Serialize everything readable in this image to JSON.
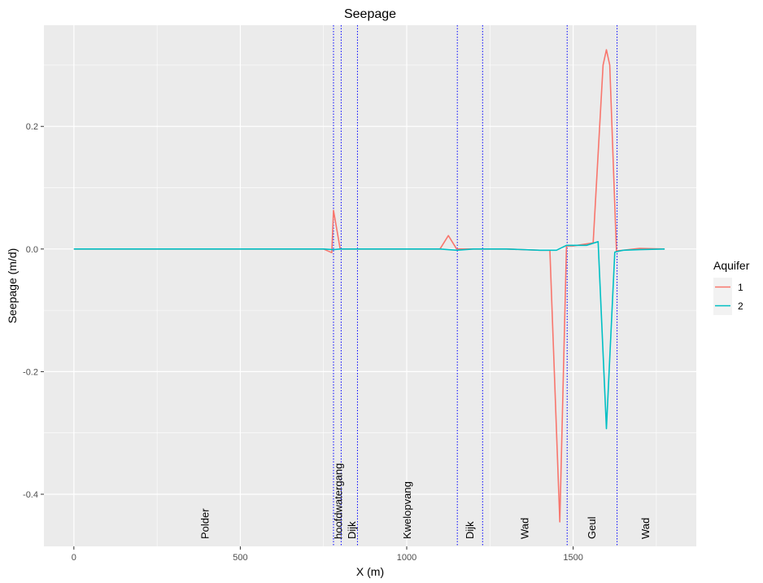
{
  "chart_data": {
    "type": "line",
    "title": "Seepage",
    "xlabel": "X (m)",
    "ylabel": "Seepage (m/d)",
    "xlim": [
      -90,
      1870
    ],
    "ylim": [
      -0.485,
      0.365
    ],
    "x_ticks": [
      0,
      500,
      1000,
      1500
    ],
    "x_minor_ticks": [
      250,
      750,
      1250,
      1750
    ],
    "y_ticks": [
      -0.4,
      -0.2,
      0.0,
      0.2
    ],
    "y_tick_labels": [
      "-0.4",
      "-0.2",
      "0.0",
      "0.2"
    ],
    "y_minor_ticks": [
      -0.3,
      -0.1,
      0.1,
      0.3
    ],
    "grid": true,
    "legend": {
      "title": "Aquifer",
      "position": "right"
    },
    "series": [
      {
        "name": "1",
        "color": "#F8766D",
        "x": [
          0,
          500,
          750,
          775,
          780,
          800,
          1000,
          1100,
          1125,
          1150,
          1200,
          1300,
          1400,
          1430,
          1460,
          1480,
          1500,
          1560,
          1590,
          1600,
          1610,
          1630,
          1650,
          1700,
          1775
        ],
        "y": [
          0,
          0,
          0,
          -0.006,
          0.063,
          0,
          0,
          0,
          0.022,
          0,
          0,
          0,
          -0.002,
          -0.002,
          -0.445,
          0.005,
          0.005,
          0.01,
          0.3,
          0.325,
          0.3,
          -0.003,
          -0.002,
          0.001,
          0
        ]
      },
      {
        "name": "2",
        "color": "#00BFC4",
        "x": [
          0,
          500,
          750,
          780,
          800,
          1000,
          1100,
          1150,
          1200,
          1300,
          1400,
          1450,
          1480,
          1500,
          1540,
          1575,
          1600,
          1625,
          1650,
          1700,
          1775
        ],
        "y": [
          0,
          0,
          0,
          -0.001,
          0,
          0,
          0,
          -0.002,
          0,
          0,
          -0.002,
          -0.002,
          0.006,
          0.006,
          0.006,
          0.012,
          -0.293,
          -0.005,
          -0.002,
          -0.001,
          0
        ]
      }
    ],
    "vertical_lines": {
      "color": "#0000FF",
      "x": [
        780,
        803,
        852,
        1152,
        1228,
        1482,
        1632
      ]
    },
    "region_labels": [
      {
        "text": "Polder",
        "x": 395
      },
      {
        "text": "hoofdwatergang",
        "x": 796
      },
      {
        "text": "Dijk",
        "x": 836
      },
      {
        "text": "Kwelopvang",
        "x": 1002
      },
      {
        "text": "Dijk",
        "x": 1190
      },
      {
        "text": "Wad",
        "x": 1355
      },
      {
        "text": "Geul",
        "x": 1557
      },
      {
        "text": "Wad",
        "x": 1718
      }
    ]
  }
}
